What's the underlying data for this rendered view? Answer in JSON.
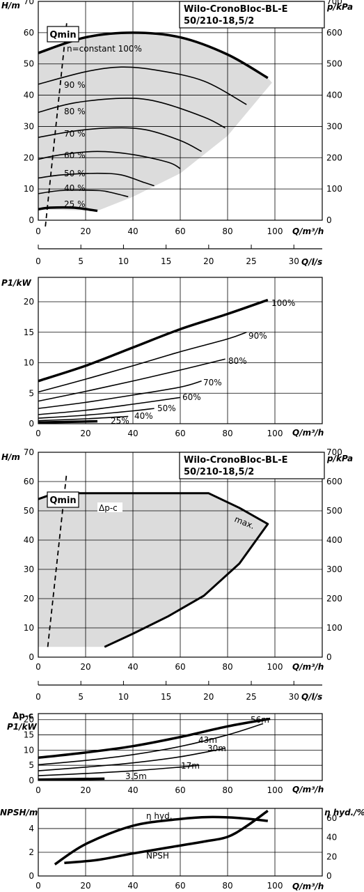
{
  "chart_data": [
    {
      "id": "c1",
      "type": "line",
      "title": "Wilo-CronoBloc-BL-E",
      "subtitle": "50/210-18,5/2",
      "ylabel": "H/m",
      "y2label": "p/kPa",
      "xlabel": "Q/m³/h",
      "x2label": "Q/l/s",
      "xlim": [
        0,
        120
      ],
      "ylim": [
        0,
        70
      ],
      "y2lim": [
        0,
        700
      ],
      "x2lim": [
        0,
        33.33
      ],
      "xticks": [
        "0",
        "20",
        "40",
        "60",
        "80",
        "100"
      ],
      "yticks": [
        "0",
        "10",
        "20",
        "30",
        "40",
        "50",
        "60",
        "70"
      ],
      "y2ticks": [
        "0",
        "100",
        "200",
        "300",
        "400",
        "500",
        "600",
        "700"
      ],
      "x2ticks": [
        "0",
        "5",
        "10",
        "15",
        "20",
        "25",
        "30"
      ],
      "grid": true,
      "series": [
        {
          "name": "100%",
          "label": "n=constant 100%",
          "x": [
            0,
            20,
            40,
            60,
            80,
            97
          ],
          "y": [
            53.5,
            58.5,
            60,
            58.5,
            53,
            45.5
          ]
        },
        {
          "name": "90 %",
          "label": "90 %",
          "x": [
            0,
            20,
            35,
            50,
            70,
            88
          ],
          "y": [
            43.5,
            47.5,
            49,
            48,
            44.5,
            37
          ]
        },
        {
          "name": "80 %",
          "label": "80 %",
          "x": [
            0,
            15,
            35,
            50,
            70,
            79
          ],
          "y": [
            34.5,
            37.5,
            39,
            38,
            33,
            29.5
          ]
        },
        {
          "name": "70 %",
          "label": "70 %",
          "x": [
            0,
            15,
            30,
            45,
            60,
            69
          ],
          "y": [
            26.5,
            28.5,
            29.5,
            29,
            25.5,
            22
          ]
        },
        {
          "name": "60 %",
          "label": "60 %",
          "x": [
            0,
            10,
            25,
            40,
            55,
            60
          ],
          "y": [
            19.5,
            21,
            22,
            21,
            18.5,
            16.5
          ]
        },
        {
          "name": "50 %",
          "label": "50 %",
          "x": [
            0,
            10,
            25,
            35,
            45,
            49
          ],
          "y": [
            13.5,
            14.5,
            15,
            14.5,
            12,
            11
          ]
        },
        {
          "name": "40 %",
          "label": "40 %",
          "x": [
            0,
            10,
            25,
            30,
            38
          ],
          "y": [
            8.5,
            9.5,
            9.5,
            9,
            7.5
          ]
        },
        {
          "name": "25 %",
          "label": "25 %",
          "x": [
            0,
            5,
            15,
            25
          ],
          "y": [
            3.5,
            4,
            4,
            3
          ]
        }
      ],
      "qmin_label": "Qmin"
    },
    {
      "id": "c2",
      "type": "line",
      "ylabel": "P1/kW",
      "xlabel": "Q/m³/h",
      "xlim": [
        0,
        120
      ],
      "ylim": [
        0,
        24
      ],
      "xticks": [
        "0",
        "20",
        "40",
        "60",
        "80",
        "100"
      ],
      "yticks": [
        "0",
        "5",
        "10",
        "15",
        "20"
      ],
      "grid": true,
      "series": [
        {
          "name": "100%",
          "x": [
            0,
            20,
            40,
            60,
            80,
            97
          ],
          "y": [
            7,
            9.5,
            12.5,
            15.5,
            18,
            20.3
          ]
        },
        {
          "name": "90%",
          "x": [
            0,
            20,
            40,
            60,
            80,
            88
          ],
          "y": [
            5.2,
            7.3,
            9.5,
            11.8,
            13.9,
            15
          ]
        },
        {
          "name": "80%",
          "x": [
            0,
            20,
            40,
            60,
            79
          ],
          "y": [
            3.7,
            5.3,
            7,
            8.8,
            10.6
          ]
        },
        {
          "name": "70%",
          "x": [
            0,
            20,
            40,
            60,
            69
          ],
          "y": [
            2.5,
            3.5,
            4.7,
            6,
            7
          ]
        },
        {
          "name": "60%",
          "x": [
            0,
            20,
            40,
            60
          ],
          "y": [
            1.5,
            2.2,
            3.2,
            4.3
          ]
        },
        {
          "name": "50%",
          "x": [
            0,
            20,
            40,
            49
          ],
          "y": [
            0.9,
            1.4,
            2.1,
            2.5
          ]
        },
        {
          "name": "40%",
          "x": [
            0,
            20,
            38
          ],
          "y": [
            0.5,
            0.8,
            1.2
          ]
        },
        {
          "name": "25%",
          "x": [
            0,
            25
          ],
          "y": [
            0.2,
            0.4
          ]
        }
      ]
    },
    {
      "id": "c3",
      "type": "area",
      "title": "Wilo-CronoBloc-BL-E",
      "subtitle": "50/210-18,5/2",
      "ylabel": "H/m",
      "y2label": "p/kPa",
      "xlabel": "Q/m³/h",
      "x2label": "Q/l/s",
      "xlim": [
        0,
        120
      ],
      "ylim": [
        0,
        70
      ],
      "y2lim": [
        0,
        700
      ],
      "x2lim": [
        0,
        33.33
      ],
      "xticks": [
        "0",
        "20",
        "40",
        "60",
        "80",
        "100"
      ],
      "yticks": [
        "0",
        "10",
        "20",
        "30",
        "40",
        "50",
        "60",
        "70"
      ],
      "y2ticks": [
        "0",
        "100",
        "200",
        "300",
        "400",
        "500",
        "600",
        "700"
      ],
      "x2ticks": [
        "0",
        "5",
        "10",
        "15",
        "20",
        "25",
        "30"
      ],
      "grid": true,
      "qmin_label": "Qmin",
      "dp_label": "Δp-c",
      "max_label": "max.",
      "envelope": {
        "x": [
          0,
          7,
          72,
          85,
          97,
          85,
          70,
          55,
          40,
          28,
          0
        ],
        "y": [
          54,
          56,
          56,
          51,
          45.5,
          32,
          21,
          14,
          8,
          3.5,
          3.5
        ]
      }
    },
    {
      "id": "c4",
      "type": "line",
      "ylabel": "P1/kW",
      "ylabel_top": "Δp-c",
      "xlabel": "Q/m³/h",
      "xlim": [
        0,
        120
      ],
      "ylim": [
        0,
        22
      ],
      "xticks": [
        "0",
        "20",
        "40",
        "60",
        "80",
        "100"
      ],
      "yticks": [
        "0",
        "5",
        "10",
        "15",
        "20"
      ],
      "grid": true,
      "series": [
        {
          "name": "56m",
          "x": [
            0,
            20,
            40,
            60,
            80,
            98
          ],
          "y": [
            7.5,
            9.2,
            11.3,
            14.3,
            17.8,
            20.3
          ]
        },
        {
          "name": "43m",
          "x": [
            0,
            20,
            40,
            60,
            80,
            95
          ],
          "y": [
            5.2,
            6.6,
            8.5,
            11.2,
            15,
            18.7
          ]
        },
        {
          "name": "30m",
          "x": [
            0,
            20,
            40,
            60,
            79
          ],
          "y": [
            3.2,
            4.4,
            5.8,
            7.8,
            10.6
          ]
        },
        {
          "name": "17m",
          "x": [
            0,
            20,
            40,
            60,
            68
          ],
          "y": [
            1.6,
            2.3,
            3.2,
            4.4,
            5
          ]
        },
        {
          "name": "3.5m",
          "x": [
            0,
            28
          ],
          "y": [
            0.3,
            0.6
          ]
        }
      ]
    },
    {
      "id": "c5",
      "type": "line",
      "ylabel": "NPSH/m",
      "y2label": "η hyd./%",
      "xlabel": "Q/m³/h",
      "xlim": [
        0,
        120
      ],
      "ylim": [
        0,
        5.7
      ],
      "y2lim": [
        0,
        70
      ],
      "xticks": [
        "0",
        "20",
        "40",
        "60",
        "80",
        "100"
      ],
      "yticks": [
        "0",
        "2",
        "4"
      ],
      "y2ticks": [
        "0",
        "20",
        "40",
        "60"
      ],
      "grid": true,
      "series": [
        {
          "name": "η hyd.",
          "axis": "right",
          "x": [
            7,
            20,
            40,
            60,
            72,
            85,
            97
          ],
          "y": [
            12,
            33,
            52,
            59,
            61,
            60,
            57
          ]
        },
        {
          "name": "NPSH",
          "axis": "left",
          "x": [
            11,
            25,
            40,
            55,
            70,
            80,
            88,
            97
          ],
          "y": [
            1.1,
            1.35,
            1.9,
            2.4,
            2.9,
            3.3,
            4.2,
            5.5
          ]
        }
      ]
    }
  ]
}
